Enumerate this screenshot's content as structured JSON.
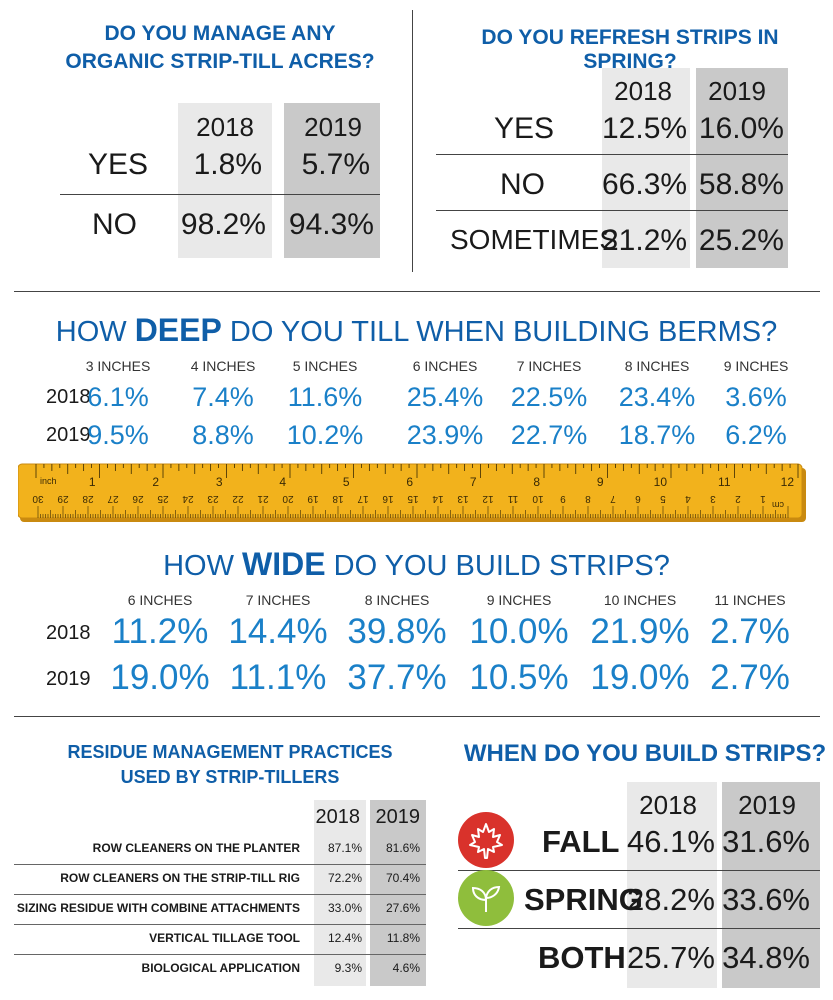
{
  "organic": {
    "title_line1": "DO YOU MANAGE ANY",
    "title_line2": "ORGANIC STRIP-TILL ACRES?",
    "years": [
      "2018",
      "2019"
    ],
    "rows": [
      {
        "label": "YES",
        "v2018": "1.8%",
        "v2019": "5.7%"
      },
      {
        "label": "NO",
        "v2018": "98.2%",
        "v2019": "94.3%"
      }
    ]
  },
  "refresh": {
    "title": "DO YOU REFRESH STRIPS IN SPRING?",
    "years": [
      "2018",
      "2019"
    ],
    "rows": [
      {
        "label": "YES",
        "v2018": "12.5%",
        "v2019": "16.0%"
      },
      {
        "label": "NO",
        "v2018": "66.3%",
        "v2019": "58.8%"
      },
      {
        "label": "SOMETIMES",
        "v2018": "21.2%",
        "v2019": "25.2%"
      }
    ]
  },
  "deep": {
    "title_pre": "HOW ",
    "title_bold": "DEEP",
    "title_post": " DO YOU TILL WHEN BUILDING BERMS?",
    "categories": [
      "3 INCHES",
      "4 INCHES",
      "5 INCHES",
      "6 INCHES",
      "7 INCHES",
      "8 INCHES",
      "9 INCHES"
    ],
    "rows": [
      {
        "year": "2018",
        "values": [
          "6.1%",
          "7.4%",
          "11.6%",
          "25.4%",
          "22.5%",
          "23.4%",
          "3.6%"
        ]
      },
      {
        "year": "2019",
        "values": [
          "9.5%",
          "8.8%",
          "10.2%",
          "23.9%",
          "22.7%",
          "18.7%",
          "6.2%"
        ]
      }
    ]
  },
  "ruler": {
    "top_label": "inch",
    "top_numbers": [
      "1",
      "2",
      "3",
      "4",
      "5",
      "6",
      "7",
      "8",
      "9",
      "10",
      "11",
      "12"
    ],
    "bottom_label": "cm",
    "bottom_numbers": [
      "1",
      "2",
      "3",
      "4",
      "5",
      "6",
      "7",
      "8",
      "9",
      "10",
      "11",
      "12",
      "13",
      "14",
      "15",
      "16",
      "17",
      "18",
      "19",
      "20",
      "21",
      "22",
      "23",
      "24",
      "25",
      "26",
      "27",
      "28",
      "29",
      "30"
    ]
  },
  "wide": {
    "title_pre": "HOW ",
    "title_bold": "WIDE",
    "title_post": " DO YOU BUILD STRIPS?",
    "categories": [
      "6 INCHES",
      "7 INCHES",
      "8 INCHES",
      "9 INCHES",
      "10 INCHES",
      "11 INCHES"
    ],
    "rows": [
      {
        "year": "2018",
        "values": [
          "11.2%",
          "14.4%",
          "39.8%",
          "10.0%",
          "21.9%",
          "2.7%"
        ]
      },
      {
        "year": "2019",
        "values": [
          "19.0%",
          "11.1%",
          "37.7%",
          "10.5%",
          "19.0%",
          "2.7%"
        ]
      }
    ]
  },
  "residue": {
    "title_line1": "RESIDUE MANAGEMENT PRACTICES",
    "title_line2": "USED BY STRIP-TILLERS",
    "years": [
      "2018",
      "2019"
    ],
    "rows": [
      {
        "label": "ROW CLEANERS ON THE PLANTER",
        "v2018": "87.1%",
        "v2019": "81.6%"
      },
      {
        "label": "ROW CLEANERS ON THE STRIP-TILL RIG",
        "v2018": "72.2%",
        "v2019": "70.4%"
      },
      {
        "label": "SIZING RESIDUE WITH COMBINE ATTACHMENTS",
        "v2018": "33.0%",
        "v2019": "27.6%"
      },
      {
        "label": "VERTICAL TILLAGE TOOL",
        "v2018": "12.4%",
        "v2019": "11.8%"
      },
      {
        "label": "BIOLOGICAL APPLICATION",
        "v2018": "9.3%",
        "v2019": "4.6%"
      }
    ]
  },
  "when": {
    "title": "WHEN DO YOU BUILD STRIPS?",
    "years": [
      "2018",
      "2019"
    ],
    "rows": [
      {
        "label": "FALL",
        "icon": "maple-leaf-icon",
        "v2018": "46.1%",
        "v2019": "31.6%"
      },
      {
        "label": "SPRING",
        "icon": "sprout-icon",
        "v2018": "28.2%",
        "v2019": "33.6%"
      },
      {
        "label": "BOTH",
        "icon": "",
        "v2018": "25.7%",
        "v2019": "34.8%"
      }
    ]
  },
  "colors": {
    "title_blue": "#0f5ea8",
    "value_blue": "#1a80c8",
    "ruler_yellow": "#f2b21c",
    "fall_red": "#d9322b",
    "spring_green": "#8fbe3c"
  },
  "chart_data": [
    {
      "type": "table",
      "title": "DO YOU MANAGE ANY ORGANIC STRIP-TILL ACRES?",
      "categories": [
        "YES",
        "NO"
      ],
      "series": [
        {
          "name": "2018",
          "values": [
            1.8,
            98.2
          ]
        },
        {
          "name": "2019",
          "values": [
            5.7,
            94.3
          ]
        }
      ]
    },
    {
      "type": "table",
      "title": "DO YOU REFRESH STRIPS IN SPRING?",
      "categories": [
        "YES",
        "NO",
        "SOMETIMES"
      ],
      "series": [
        {
          "name": "2018",
          "values": [
            12.5,
            66.3,
            21.2
          ]
        },
        {
          "name": "2019",
          "values": [
            16.0,
            58.8,
            25.2
          ]
        }
      ]
    },
    {
      "type": "table",
      "title": "HOW DEEP DO YOU TILL WHEN BUILDING BERMS?",
      "categories": [
        "3 INCHES",
        "4 INCHES",
        "5 INCHES",
        "6 INCHES",
        "7 INCHES",
        "8 INCHES",
        "9 INCHES"
      ],
      "series": [
        {
          "name": "2018",
          "values": [
            6.1,
            7.4,
            11.6,
            25.4,
            22.5,
            23.4,
            3.6
          ]
        },
        {
          "name": "2019",
          "values": [
            9.5,
            8.8,
            10.2,
            23.9,
            22.7,
            18.7,
            6.2
          ]
        }
      ]
    },
    {
      "type": "table",
      "title": "HOW WIDE DO YOU BUILD STRIPS?",
      "categories": [
        "6 INCHES",
        "7 INCHES",
        "8 INCHES",
        "9 INCHES",
        "10 INCHES",
        "11 INCHES"
      ],
      "series": [
        {
          "name": "2018",
          "values": [
            11.2,
            14.4,
            39.8,
            10.0,
            21.9,
            2.7
          ]
        },
        {
          "name": "2019",
          "values": [
            19.0,
            11.1,
            37.7,
            10.5,
            19.0,
            2.7
          ]
        }
      ]
    },
    {
      "type": "table",
      "title": "RESIDUE MANAGEMENT PRACTICES USED BY STRIP-TILLERS",
      "categories": [
        "ROW CLEANERS ON THE PLANTER",
        "ROW CLEANERS ON THE STRIP-TILL RIG",
        "SIZING RESIDUE WITH COMBINE ATTACHMENTS",
        "VERTICAL TILLAGE TOOL",
        "BIOLOGICAL APPLICATION"
      ],
      "series": [
        {
          "name": "2018",
          "values": [
            87.1,
            72.2,
            33.0,
            12.4,
            9.3
          ]
        },
        {
          "name": "2019",
          "values": [
            81.6,
            70.4,
            27.6,
            11.8,
            4.6
          ]
        }
      ]
    },
    {
      "type": "table",
      "title": "WHEN DO YOU BUILD STRIPS?",
      "categories": [
        "FALL",
        "SPRING",
        "BOTH"
      ],
      "series": [
        {
          "name": "2018",
          "values": [
            46.1,
            28.2,
            25.7
          ]
        },
        {
          "name": "2019",
          "values": [
            31.6,
            33.6,
            34.8
          ]
        }
      ]
    }
  ]
}
